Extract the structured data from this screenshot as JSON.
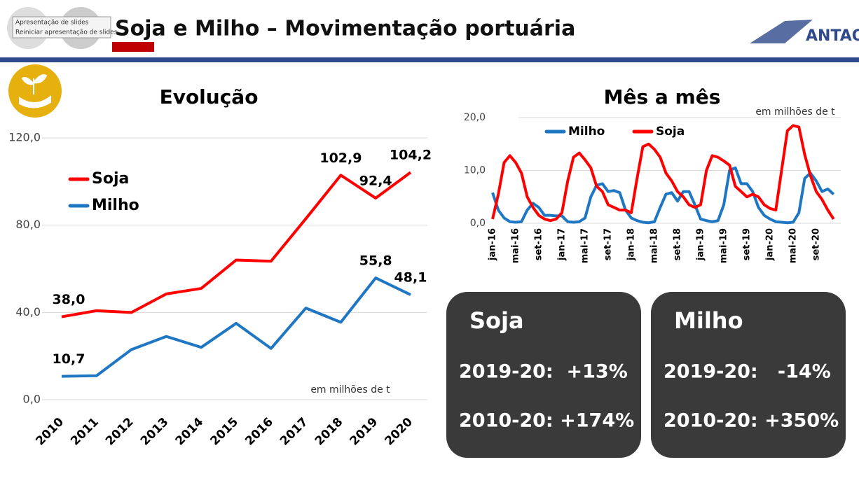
{
  "toolbar": {
    "items": [
      "Apresentação de slides",
      "Reiniciar apresentação de slides"
    ]
  },
  "header": {
    "title": "Soja e Milho – Movimentação portuária",
    "logo": "ANTAQ"
  },
  "chart_data": [
    {
      "type": "line",
      "title": "Evolução",
      "annotation": "em milhões de t",
      "legend": "upper left",
      "grid": true,
      "categories": [
        "2010",
        "2011",
        "2012",
        "2013",
        "2014",
        "2015",
        "2016",
        "2017",
        "2018",
        "2019",
        "2020"
      ],
      "series": [
        {
          "name": "Soja",
          "color": "#ff0000",
          "values": [
            38.0,
            40.8,
            40.0,
            48.5,
            51.0,
            64.0,
            63.5,
            83.0,
            102.9,
            92.4,
            104.2
          ],
          "value_labels": [
            "38,0",
            null,
            null,
            null,
            null,
            null,
            null,
            null,
            "102,9",
            "92,4",
            "104,2"
          ]
        },
        {
          "name": "Milho",
          "color": "#1f77c4",
          "values": [
            10.7,
            11.0,
            23.0,
            29.0,
            24.0,
            35.0,
            23.5,
            42.0,
            35.5,
            55.8,
            48.1
          ],
          "value_labels": [
            "10,7",
            null,
            null,
            null,
            null,
            null,
            null,
            null,
            null,
            "55,8",
            "48,1"
          ]
        }
      ],
      "ylim": [
        0,
        120
      ],
      "yticks": [
        {
          "value": 0,
          "label": "0,0"
        },
        {
          "value": 40,
          "label": "40,0"
        },
        {
          "value": 80,
          "label": "80,0"
        },
        {
          "value": 120,
          "label": "120,0"
        }
      ]
    },
    {
      "type": "line",
      "title": "Mês a mês",
      "annotation": "em milhões de t",
      "legend": "upper center",
      "grid": true,
      "categories": [
        "jan-16",
        null,
        null,
        null,
        "mai-16",
        null,
        null,
        null,
        "set-16",
        null,
        null,
        null,
        "jan-17",
        null,
        null,
        null,
        "mai-17",
        null,
        null,
        null,
        "set-17",
        null,
        null,
        null,
        "jan-18",
        null,
        null,
        null,
        "mai-18",
        null,
        null,
        null,
        "set-18",
        null,
        null,
        null,
        "jan-19",
        null,
        null,
        null,
        "mai-19",
        null,
        null,
        null,
        "set-19",
        null,
        null,
        null,
        "jan-20",
        null,
        null,
        null,
        "mai-20",
        null,
        null,
        null,
        "set-20",
        null,
        null,
        null
      ],
      "series": [
        {
          "name": "Milho",
          "color": "#1f77c4",
          "values": [
            5.8,
            2.5,
            1.0,
            0.3,
            0.2,
            0.3,
            2.5,
            3.8,
            3.0,
            1.5,
            1.5,
            1.4,
            1.4,
            0.3,
            0.2,
            0.3,
            1.0,
            5.0,
            7.2,
            7.5,
            6.0,
            6.2,
            5.8,
            2.5,
            1.0,
            0.5,
            0.2,
            0.1,
            0.3,
            3.0,
            5.5,
            5.8,
            4.2,
            6.0,
            6.0,
            3.5,
            0.8,
            0.5,
            0.3,
            0.5,
            3.5,
            10.0,
            10.5,
            7.5,
            7.5,
            6.0,
            3.0,
            1.5,
            0.8,
            0.3,
            0.2,
            0.1,
            0.2,
            2.0,
            8.5,
            9.5,
            8.0,
            6.0,
            6.5,
            5.5
          ]
        },
        {
          "name": "Soja",
          "color": "#ff0000",
          "values": [
            0.8,
            5.5,
            11.5,
            12.8,
            11.5,
            9.5,
            5.0,
            3.0,
            1.5,
            0.8,
            0.5,
            0.8,
            2.0,
            8.0,
            12.5,
            13.3,
            12.0,
            10.5,
            7.0,
            6.0,
            3.5,
            3.0,
            2.5,
            2.5,
            2.0,
            8.5,
            14.5,
            15.0,
            14.0,
            12.5,
            9.5,
            8.0,
            6.0,
            5.0,
            3.5,
            3.0,
            3.5,
            10.0,
            12.8,
            12.5,
            11.8,
            11.0,
            7.0,
            6.0,
            5.0,
            5.5,
            5.0,
            3.5,
            2.8,
            2.5,
            10.0,
            17.5,
            18.5,
            18.2,
            13.0,
            9.0,
            6.0,
            4.5,
            2.5,
            0.8
          ]
        }
      ],
      "ylim": [
        0,
        20
      ],
      "yticks": [
        {
          "value": 0,
          "label": "0,0"
        },
        {
          "value": 10,
          "label": "10,0"
        },
        {
          "value": 20,
          "label": "20,0"
        }
      ]
    }
  ],
  "cards": [
    {
      "title": "Soja",
      "lines": [
        "2019-20:  +13%",
        "2010-20: +174%"
      ]
    },
    {
      "title": "Milho",
      "lines": [
        "2019-20:   -14%",
        "2010-20: +350%"
      ]
    }
  ]
}
